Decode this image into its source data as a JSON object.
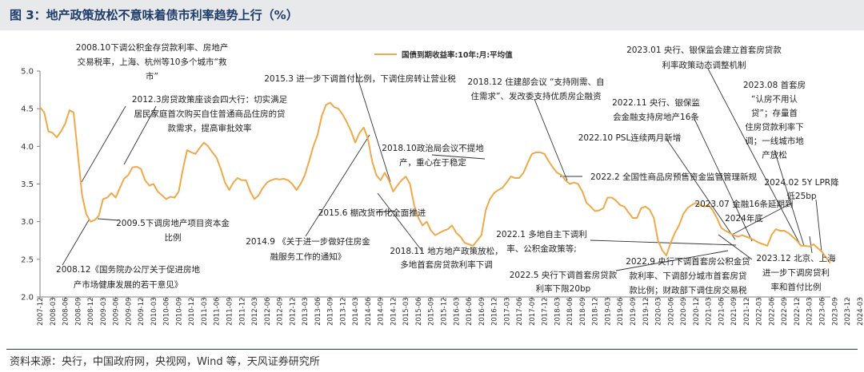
{
  "title": "图 3：地产政策放松不意味着债市利率趋势上行（%）",
  "source": "资料来源：央行，中国政府网，央视网，Wind 等，天风证券研究所",
  "colors": {
    "line": "#f0a94a",
    "title": "#1f3d6b",
    "axis": "#7f7f7f",
    "text": "#222222"
  },
  "chart_data": {
    "type": "line",
    "title": "",
    "legend": [
      "国债到期收益率:10年:月:平均值"
    ],
    "legend_position": "top",
    "ylim": [
      2.0,
      5.0
    ],
    "yticks": [
      "2.0",
      "2.5",
      "3.0",
      "3.5",
      "4.0",
      "4.5",
      "5.0"
    ],
    "xticks": [
      "2007-12",
      "2008-03",
      "2008-06",
      "2008-09",
      "2008-12",
      "2009-03",
      "2009-06",
      "2009-09",
      "2009-12",
      "2010-03",
      "2010-06",
      "2010-09",
      "2010-12",
      "2011-03",
      "2011-06",
      "2011-09",
      "2011-12",
      "2012-03",
      "2012-06",
      "2012-09",
      "2012-12",
      "2013-03",
      "2013-06",
      "2013-09",
      "2013-12",
      "2014-03",
      "2014-06",
      "2014-09",
      "2014-12",
      "2015-03",
      "2015-06",
      "2015-09",
      "2015-12",
      "2016-03",
      "2016-06",
      "2016-09",
      "2016-12",
      "2017-03",
      "2017-06",
      "2017-09",
      "2017-12",
      "2018-03",
      "2018-06",
      "2018-09",
      "2018-12",
      "2019-03",
      "2019-06",
      "2019-09",
      "2019-12",
      "2020-03",
      "2020-06",
      "2020-09",
      "2020-12",
      "2021-03",
      "2021-06",
      "2021-09",
      "2021-12",
      "2022-03",
      "2022-06",
      "2022-09",
      "2022-12",
      "2023-03",
      "2023-06",
      "2023-09",
      "2023-12",
      "2024-03"
    ],
    "start_month": "2007-12",
    "series": [
      {
        "name": "国债到期收益率:10年:月:平均值",
        "values": [
          4.52,
          4.45,
          4.2,
          4.18,
          4.12,
          4.2,
          4.3,
          4.48,
          4.45,
          3.9,
          3.35,
          3.1,
          3.0,
          3.02,
          3.08,
          3.3,
          3.32,
          3.38,
          3.32,
          3.45,
          3.57,
          3.62,
          3.72,
          3.73,
          3.7,
          3.55,
          3.48,
          3.5,
          3.4,
          3.35,
          3.3,
          3.33,
          3.32,
          3.4,
          3.7,
          3.95,
          3.92,
          3.9,
          3.98,
          4.05,
          4.0,
          3.92,
          3.85,
          3.7,
          3.52,
          3.42,
          3.52,
          3.58,
          3.55,
          3.55,
          3.4,
          3.3,
          3.35,
          3.45,
          3.52,
          3.55,
          3.57,
          3.56,
          3.57,
          3.55,
          3.5,
          3.42,
          3.5,
          3.62,
          3.8,
          4.0,
          4.15,
          4.4,
          4.55,
          4.58,
          4.52,
          4.5,
          4.42,
          4.32,
          4.2,
          4.05,
          4.18,
          4.25,
          4.1,
          3.8,
          3.62,
          3.55,
          3.65,
          3.55,
          3.4,
          3.48,
          3.55,
          3.6,
          3.5,
          3.22,
          3.05,
          2.95,
          3.0,
          2.88,
          2.82,
          2.85,
          2.88,
          2.9,
          2.95,
          2.85,
          2.8,
          2.72,
          2.7,
          2.68,
          2.75,
          2.82,
          3.15,
          3.3,
          3.38,
          3.42,
          3.45,
          3.52,
          3.6,
          3.58,
          3.58,
          3.65,
          3.78,
          3.9,
          3.92,
          3.92,
          3.9,
          3.8,
          3.72,
          3.65,
          3.62,
          3.55,
          3.5,
          3.52,
          3.5,
          3.4,
          3.25,
          3.2,
          3.14,
          3.15,
          3.18,
          3.32,
          3.32,
          3.28,
          3.22,
          3.2,
          3.12,
          3.05,
          3.05,
          3.18,
          3.2,
          3.16,
          3.05,
          2.75,
          2.62,
          2.55,
          2.72,
          2.85,
          2.95,
          3.1,
          3.18,
          3.22,
          3.25,
          3.22,
          3.2,
          3.22,
          3.15,
          3.05,
          2.92,
          2.88,
          2.85,
          2.82,
          2.8,
          2.82,
          2.8,
          2.78,
          2.75,
          2.72,
          2.7,
          2.68,
          2.82,
          2.9,
          2.88,
          2.88,
          2.85,
          2.8,
          2.75,
          2.68,
          2.68,
          2.67,
          2.7,
          2.65,
          2.6,
          2.52,
          2.45
        ]
      }
    ],
    "annotations": [
      {
        "id": "a1",
        "lines": [
          "2008.10下调公积金存贷款利率、房地产",
          "交易税率，上海、杭州等10多个城市“救",
          "市”"
        ],
        "date": "2008-10"
      },
      {
        "id": "a2",
        "lines": [
          "2008.12《国务院办公厅关于促进房地",
          "产市场健康发展的若干意见》"
        ],
        "date": "2008-12"
      },
      {
        "id": "a3",
        "lines": [
          "2009.5下调房地产项目资本金",
          "比例"
        ],
        "date": "2009-05"
      },
      {
        "id": "a4",
        "lines": [
          "2012.3房贷政策座谈会四大行：切实满足",
          "居民家庭首次购买自住普通商品住房的贷",
          "款需求，提高审批效率"
        ],
        "date": "2012-03"
      },
      {
        "id": "a5",
        "lines": [
          "2014.9 《关于进一步做好住房金",
          "融服务工作的通知》"
        ],
        "date": "2014-09"
      },
      {
        "id": "a6",
        "lines": [
          "2015.3 进一步下调首付比例，下调住房转让营业税"
        ],
        "date": "2015-03"
      },
      {
        "id": "a7",
        "lines": [
          "2015.6 棚改货币化全面推进"
        ],
        "date": "2015-06"
      },
      {
        "id": "a8",
        "lines": [
          "2018.10政治局会议不提地",
          "产，重心在于稳定"
        ],
        "date": "2018-10"
      },
      {
        "id": "a9",
        "lines": [
          "2018.11 地方地产政策放松，",
          "多地首套房贷款利率下调"
        ],
        "date": "2018-11"
      },
      {
        "id": "a10",
        "lines": [
          "2018.12 住建部会议 “支持刚需、自",
          "住需求”、发改委支持优质房企融资"
        ],
        "date": "2018-12"
      },
      {
        "id": "a11",
        "lines": [
          "2022.1 多地自主下调利",
          "率、公积金政策等;"
        ],
        "date": "2022-01"
      },
      {
        "id": "a12",
        "lines": [
          "2022.2 全国性商品房预售资金监管管理新规"
        ],
        "date": "2022-02"
      },
      {
        "id": "a13",
        "lines": [
          "2022.5 央行下调首套房贷款",
          "利率下限20bp"
        ],
        "date": "2022-05"
      },
      {
        "id": "a14",
        "lines": [
          "2022.9 央行下调首套房公积金贷",
          "款利率、下调部分城市首套房贷",
          "款比例；财政部下调住房交易税"
        ],
        "date": "2022-09"
      },
      {
        "id": "a15",
        "lines": [
          "2022.10 PSL连续两月新增"
        ],
        "date": "2022-10"
      },
      {
        "id": "a16",
        "lines": [
          "2022.11 央行、银保监",
          "会金融支持房地产16条"
        ],
        "date": "2022-11"
      },
      {
        "id": "a17",
        "lines": [
          "2023.01 央行、银保监会建立首套房贷款",
          "利率政策动态调整机制"
        ],
        "date": "2023-01"
      },
      {
        "id": "a18",
        "lines": [
          "2023.07 金融16条延期到",
          "2024年底"
        ],
        "date": "2023-07"
      },
      {
        "id": "a19",
        "lines": [
          "2023.08 首套房",
          "“认房不用认",
          "贷”；存量首",
          "住房贷款利率下",
          "调；一线城市地",
          "产放松"
        ],
        "date": "2023-08"
      },
      {
        "id": "a20",
        "lines": [
          "2023.12 北京、上海",
          "进一步下调房贷利",
          "率和首付比例"
        ],
        "date": "2023-12"
      },
      {
        "id": "a21",
        "lines": [
          "2024.02 5Y LPR降",
          "低25bp"
        ],
        "date": "2024-02"
      }
    ]
  }
}
